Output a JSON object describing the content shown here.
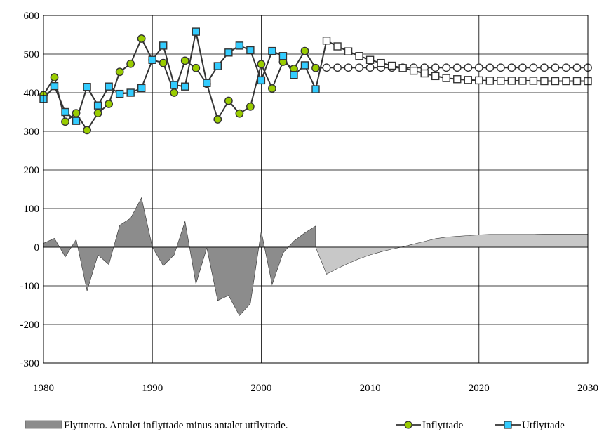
{
  "chart_data": {
    "type": "line",
    "title": "",
    "xlabel": "",
    "ylabel": "",
    "xlim": [
      1980,
      2030
    ],
    "ylim": [
      -300,
      600
    ],
    "x_ticks": [
      1980,
      1990,
      2000,
      2010,
      2020,
      2030
    ],
    "y_ticks": [
      -300,
      -200,
      -100,
      0,
      100,
      200,
      300,
      400,
      500,
      600
    ],
    "grid": true,
    "legend_position": "bottom",
    "colors": {
      "net_history": "#8c8c8c",
      "net_forecast": "#c8c8c8",
      "line": "#333333",
      "inflyttade_marker": "#99cc00",
      "utflyttade_marker": "#33ccff"
    },
    "series": [
      {
        "name": "Flyttnetto. Antalet inflyttade minus antalet utflyttade.",
        "kind": "area",
        "x": [
          1980,
          1981,
          1982,
          1983,
          1984,
          1985,
          1986,
          1987,
          1988,
          1989,
          1990,
          1991,
          1992,
          1993,
          1994,
          1995,
          1996,
          1997,
          1998,
          1999,
          2000,
          2001,
          2002,
          2003,
          2004,
          2005,
          2006,
          2007,
          2008,
          2009,
          2010,
          2011,
          2012,
          2013,
          2014,
          2015,
          2016,
          2017,
          2018,
          2019,
          2020,
          2021,
          2022,
          2023,
          2024,
          2025,
          2026,
          2027,
          2028,
          2029,
          2030
        ],
        "y": [
          10,
          23,
          -25,
          20,
          -113,
          -20,
          -45,
          57,
          75,
          128,
          0,
          -48,
          -20,
          67,
          -95,
          -2,
          -138,
          -125,
          -177,
          -146,
          42,
          -97,
          -15,
          16,
          37,
          55,
          -70,
          -55,
          -42,
          -30,
          -20,
          -12,
          -5,
          1,
          8,
          15,
          22,
          26,
          28,
          30,
          32,
          33,
          33,
          33,
          33,
          33,
          34,
          34,
          34,
          34,
          34
        ],
        "forecast_from": 2005
      },
      {
        "name": "Inflyttade",
        "kind": "line",
        "x": [
          1980,
          1981,
          1982,
          1983,
          1984,
          1985,
          1986,
          1987,
          1988,
          1989,
          1990,
          1991,
          1992,
          1993,
          1994,
          1995,
          1996,
          1997,
          1998,
          1999,
          2000,
          2001,
          2002,
          2003,
          2004,
          2005,
          2006,
          2007,
          2008,
          2009,
          2010,
          2011,
          2012,
          2013,
          2014,
          2015,
          2016,
          2017,
          2018,
          2019,
          2020,
          2021,
          2022,
          2023,
          2024,
          2025,
          2026,
          2027,
          2028,
          2029,
          2030
        ],
        "y": [
          394,
          440,
          325,
          347,
          303,
          347,
          371,
          454,
          475,
          540,
          485,
          477,
          400,
          483,
          464,
          423,
          331,
          379,
          346,
          364,
          474,
          411,
          480,
          462,
          508,
          464,
          465,
          465,
          465,
          465,
          465,
          465,
          465,
          465,
          465,
          465,
          465,
          465,
          465,
          465,
          465,
          465,
          465,
          465,
          465,
          465,
          465,
          465,
          465,
          465,
          465
        ],
        "forecast_from": 2006
      },
      {
        "name": "Utflyttade",
        "kind": "line",
        "x": [
          1980,
          1981,
          1982,
          1983,
          1984,
          1985,
          1986,
          1987,
          1988,
          1989,
          1990,
          1991,
          1992,
          1993,
          1994,
          1995,
          1996,
          1997,
          1998,
          1999,
          2000,
          2001,
          2002,
          2003,
          2004,
          2005,
          2006,
          2007,
          2008,
          2009,
          2010,
          2011,
          2012,
          2013,
          2014,
          2015,
          2016,
          2017,
          2018,
          2019,
          2020,
          2021,
          2022,
          2023,
          2024,
          2025,
          2026,
          2027,
          2028,
          2029,
          2030
        ],
        "y": [
          384,
          417,
          350,
          327,
          415,
          367,
          416,
          397,
          400,
          412,
          485,
          522,
          420,
          416,
          558,
          425,
          469,
          504,
          522,
          510,
          432,
          508,
          495,
          446,
          471,
          409,
          535,
          520,
          507,
          495,
          485,
          477,
          470,
          464,
          457,
          450,
          443,
          438,
          435,
          433,
          432,
          431,
          431,
          431,
          431,
          431,
          430,
          430,
          430,
          430,
          430
        ],
        "forecast_from": 2006
      }
    ]
  }
}
